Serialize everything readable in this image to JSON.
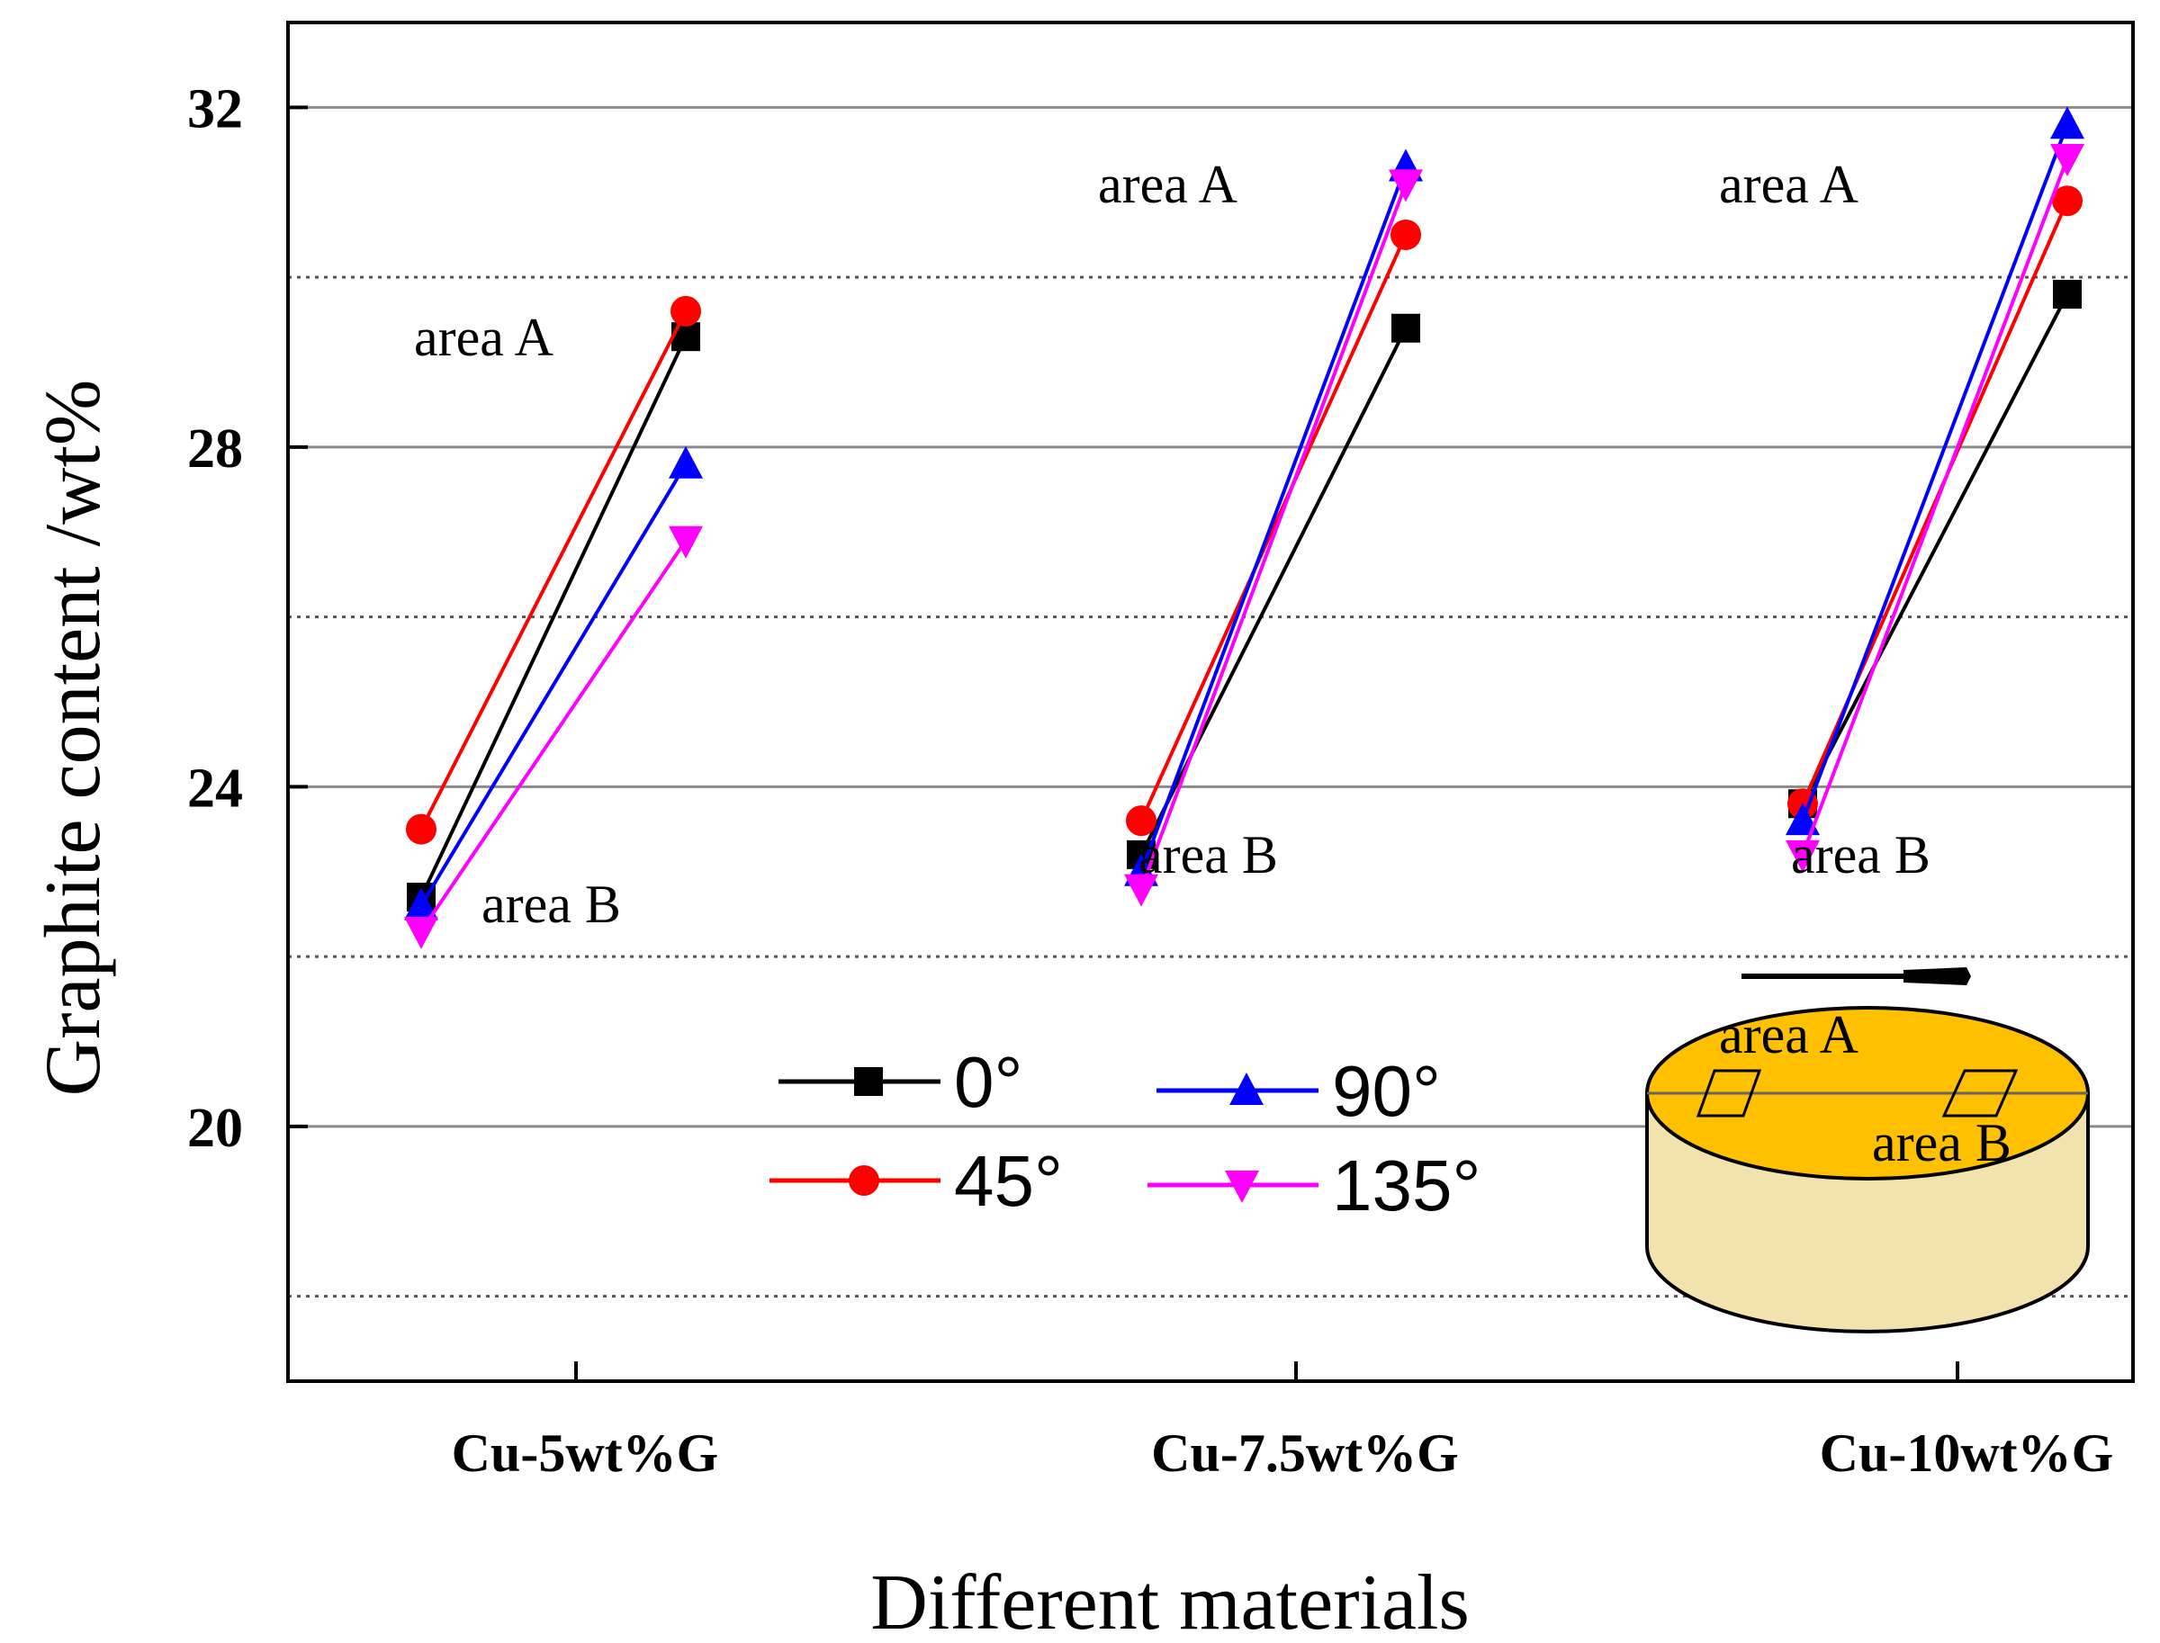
{
  "chart_data": {
    "type": "line",
    "title": "",
    "xlabel": "Different materials",
    "ylabel": "Graphite content /wt%",
    "ylim": [
      17,
      33
    ],
    "yticks": [
      "20",
      "24",
      "28",
      "32"
    ],
    "y_minor_grid": [
      18,
      22,
      26,
      30
    ],
    "categories": [
      "Cu-5wt%G",
      "Cu-7.5wt%G",
      "Cu-10wt%G"
    ],
    "points": [
      "area B",
      "area A"
    ],
    "series": [
      {
        "name": "0°",
        "color": "#000000",
        "marker": "square",
        "values": [
          [
            22.7,
            29.3
          ],
          [
            23.2,
            29.4
          ],
          [
            23.8,
            29.8
          ]
        ]
      },
      {
        "name": "45°",
        "color": "#ff0000",
        "marker": "circle",
        "values": [
          [
            23.5,
            29.6
          ],
          [
            23.6,
            30.5
          ],
          [
            23.8,
            30.9
          ]
        ]
      },
      {
        "name": "90°",
        "color": "#0000ff",
        "marker": "triangle-up",
        "values": [
          [
            22.6,
            27.8
          ],
          [
            23.0,
            31.3
          ],
          [
            23.6,
            31.8
          ]
        ]
      },
      {
        "name": "135°",
        "color": "#ff00ff",
        "marker": "triangle-down",
        "values": [
          [
            22.3,
            26.9
          ],
          [
            22.8,
            31.1
          ],
          [
            23.2,
            31.4
          ]
        ]
      }
    ],
    "annotations": [
      {
        "category": "Cu-5wt%G",
        "text": "area A"
      },
      {
        "category": "Cu-5wt%G",
        "text": "area B"
      },
      {
        "category": "Cu-7.5wt%G",
        "text": "area A"
      },
      {
        "category": "Cu-7.5wt%G",
        "text": "area B"
      },
      {
        "category": "Cu-10wt%G",
        "text": "area A"
      },
      {
        "category": "Cu-10wt%G",
        "text": "area B"
      }
    ],
    "inset": {
      "description_labels": [
        "area A",
        "area B"
      ],
      "colors": {
        "top": "#ffc000",
        "side": "#f2e2ae",
        "outline": "#000000"
      }
    },
    "legend_location": "bottom-center"
  }
}
